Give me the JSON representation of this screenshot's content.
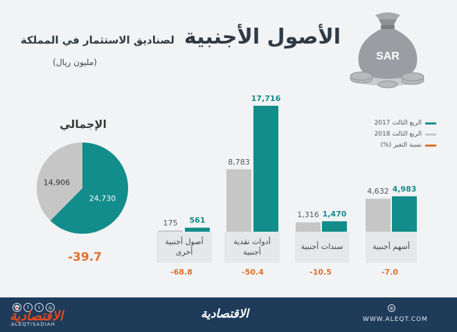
{
  "header": {
    "title_main": "الأصول الأجنبية",
    "title_sub": "لصناديق الاستثمار في المملكة",
    "unit": "(مليون ريال)",
    "bag_label": "SAR"
  },
  "legend": [
    {
      "label": "الربع الثالث 2017",
      "color": "#138c8c"
    },
    {
      "label": "الربع الثالث 2018",
      "color": "#c6c6c6"
    },
    {
      "label": "نسبة التغير (%)",
      "color": "#e06f2c"
    }
  ],
  "chart_data": [
    {
      "type": "bar",
      "categories": [
        "أسهم أجنبية",
        "سندات أجنبية",
        "أدوات نقدية أجنبية",
        "أصول أجنبية أخرى"
      ],
      "series": [
        {
          "name": "الربع الثالث 2017",
          "values": [
            4983,
            1470,
            17716,
            561
          ],
          "labels": [
            "4,983",
            "1,470",
            "17,716",
            "561"
          ],
          "color": "#138c8c"
        },
        {
          "name": "الربع الثالث 2018",
          "values": [
            4632,
            1316,
            8783,
            175
          ],
          "labels": [
            "4,632",
            "1,316",
            "8,783",
            "175"
          ],
          "color": "#c6c6c6"
        }
      ],
      "change_pct": [
        "-7.0",
        "-10.5",
        "-50.4",
        "-68.8"
      ],
      "ylim": [
        0,
        18000
      ]
    },
    {
      "type": "pie",
      "title": "الإجمالي",
      "slices": [
        {
          "label": "24,730",
          "value": 24730,
          "color": "#138c8c"
        },
        {
          "label": "14,906",
          "value": 14906,
          "color": "#c6c6c6"
        }
      ],
      "change_pct": "-39.7"
    }
  ],
  "footer": {
    "logo_left": "الاقتصادية",
    "handle": "ALEQTISADIAH",
    "logo_center": "الاقتصادية",
    "url": "WWW.ALEQT.COM",
    "social_icons": [
      "snapchat-icon",
      "facebook-icon",
      "twitter-icon",
      "instagram-icon"
    ]
  }
}
